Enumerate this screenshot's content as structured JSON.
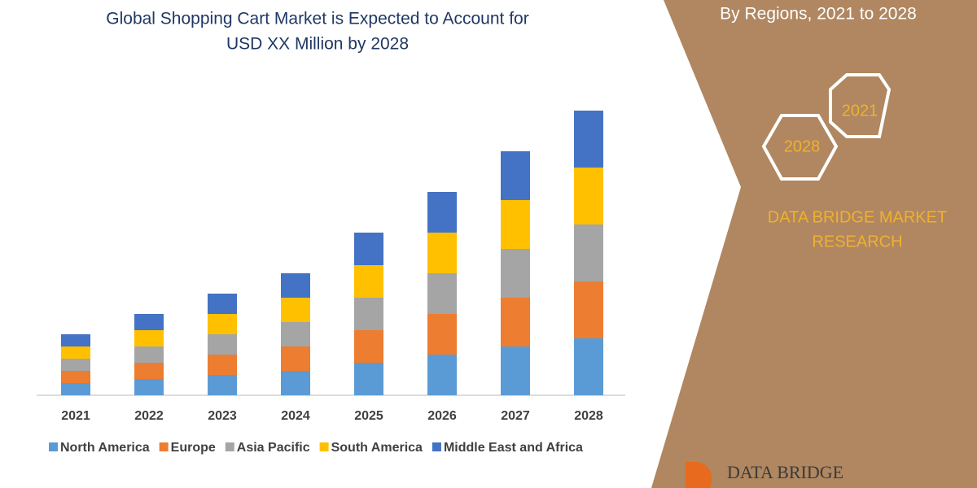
{
  "chart_data": {
    "type": "bar",
    "stacked": true,
    "title": [
      "Global Shopping Cart Market is Expected to Account for",
      "USD XX Million by 2028"
    ],
    "categories": [
      "2021",
      "2022",
      "2023",
      "2024",
      "2025",
      "2026",
      "2027",
      "2028"
    ],
    "series": [
      {
        "name": "North America",
        "color": "#5b9bd5",
        "values": [
          1.5,
          2,
          2.5,
          3,
          4,
          5,
          6,
          7
        ]
      },
      {
        "name": "Europe",
        "color": "#ed7d31",
        "values": [
          1.5,
          2,
          2.5,
          3,
          4,
          5,
          6,
          7
        ]
      },
      {
        "name": "Asia Pacific",
        "color": "#a5a5a5",
        "values": [
          1.5,
          2,
          2.5,
          3,
          4,
          5,
          6,
          7
        ]
      },
      {
        "name": "South America",
        "color": "#ffc000",
        "values": [
          1.5,
          2,
          2.5,
          3,
          4,
          5,
          6,
          7
        ]
      },
      {
        "name": "Middle East and Africa",
        "color": "#4472c4",
        "values": [
          1.5,
          2,
          2.5,
          3,
          4,
          5,
          6,
          7
        ]
      }
    ],
    "ylim": [
      0,
      40
    ],
    "legend": "bottom"
  },
  "panel": {
    "heading": "By Regions, 2021 to 2028",
    "hexagons": [
      "2021",
      "2028"
    ],
    "brand": [
      "DATA BRIDGE MARKET",
      "RESEARCH"
    ],
    "logo": "DATA BRIDGE"
  }
}
